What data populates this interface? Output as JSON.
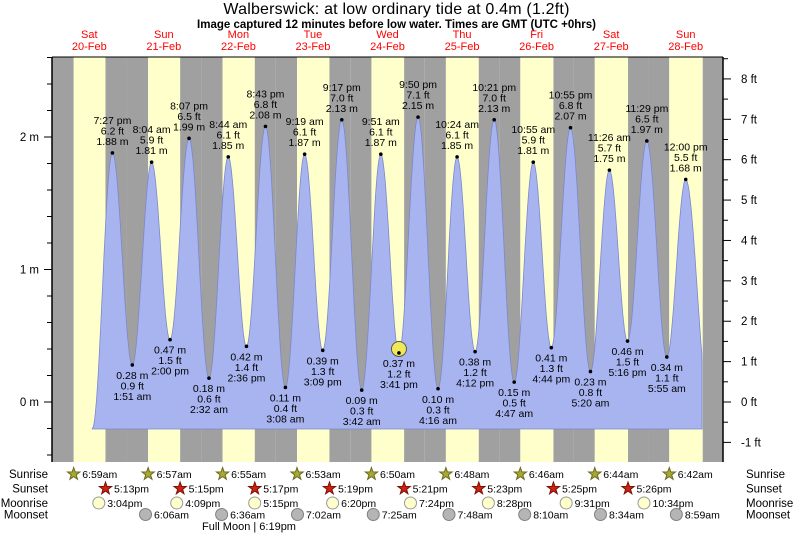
{
  "title": "Walberswick: at low  ordinary tide at 0.4m (1.2ft)",
  "subtitle": "Image captured 12 minutes before low water. Times are GMT (UTC +0hrs)",
  "colors": {
    "day_band": "#ffffcc",
    "night_band": "#a0a0a0",
    "sea_fill": "#a8b4f0",
    "sea_edge": "#7b88cc",
    "day_label": "#ff0000",
    "axis": "#000000",
    "sunrise_star": "#a8a832",
    "sunrise_star_edge": "#6b6b1e",
    "sunset_star": "#cc2211",
    "sunset_star_edge": "#7a1206",
    "moonrise_circle": "#ffffcc",
    "moonrise_circle_edge": "#999999",
    "moonset_circle": "#b5b5b5",
    "moonset_circle_edge": "#808080",
    "current_marker": "#f0e858"
  },
  "chart_data": {
    "type": "area",
    "title": "Walberswick: at low  ordinary tide at 0.4m (1.2ft)",
    "subtitle": "Image captured 12 minutes before low water. Times are GMT (UTC +0hrs)",
    "x_axis": {
      "days": [
        {
          "name": "Sat",
          "date": "20-Feb"
        },
        {
          "name": "Sun",
          "date": "21-Feb"
        },
        {
          "name": "Mon",
          "date": "22-Feb"
        },
        {
          "name": "Tue",
          "date": "23-Feb"
        },
        {
          "name": "Wed",
          "date": "24-Feb"
        },
        {
          "name": "Thu",
          "date": "25-Feb"
        },
        {
          "name": "Fri",
          "date": "26-Feb"
        },
        {
          "name": "Sat",
          "date": "27-Feb"
        },
        {
          "name": "Sun",
          "date": "28-Feb"
        }
      ]
    },
    "y_axis_left": {
      "unit": "m",
      "tick_labels": [
        "0 m",
        "1 m",
        "2 m"
      ],
      "tick_values": [
        0,
        1,
        2
      ]
    },
    "y_axis_right": {
      "unit": "ft",
      "tick_labels": [
        "-1 ft",
        "0 ft",
        "1 ft",
        "2 ft",
        "3 ft",
        "4 ft",
        "5 ft",
        "6 ft",
        "7 ft",
        "8 ft"
      ],
      "tick_values": [
        -1,
        0,
        1,
        2,
        3,
        4,
        5,
        6,
        7,
        8
      ]
    },
    "events": [
      {
        "day": 0,
        "time": "7:27 pm",
        "type": "high",
        "m": 1.88,
        "ft": 6.2,
        "m_label": "1.88 m",
        "ft_label": "6.2 ft"
      },
      {
        "day": 1,
        "time": "1:51 am",
        "type": "low",
        "m": 0.28,
        "ft": 0.9,
        "m_label": "0.28 m",
        "ft_label": "0.9 ft"
      },
      {
        "day": 1,
        "time": "8:04 am",
        "type": "high",
        "m": 1.81,
        "ft": 5.9,
        "m_label": "1.81 m",
        "ft_label": "5.9 ft"
      },
      {
        "day": 1,
        "time": "2:00 pm",
        "type": "low",
        "m": 0.47,
        "ft": 1.5,
        "m_label": "0.47 m",
        "ft_label": "1.5 ft"
      },
      {
        "day": 1,
        "time": "8:07 pm",
        "type": "high",
        "m": 1.99,
        "ft": 6.5,
        "m_label": "1.99 m",
        "ft_label": "6.5 ft"
      },
      {
        "day": 2,
        "time": "2:32 am",
        "type": "low",
        "m": 0.18,
        "ft": 0.6,
        "m_label": "0.18 m",
        "ft_label": "0.6 ft"
      },
      {
        "day": 2,
        "time": "8:44 am",
        "type": "high",
        "m": 1.85,
        "ft": 6.1,
        "m_label": "1.85 m",
        "ft_label": "6.1 ft"
      },
      {
        "day": 2,
        "time": "2:36 pm",
        "type": "low",
        "m": 0.42,
        "ft": 1.4,
        "m_label": "0.42 m",
        "ft_label": "1.4 ft"
      },
      {
        "day": 2,
        "time": "8:43 pm",
        "type": "high",
        "m": 2.08,
        "ft": 6.8,
        "m_label": "2.08 m",
        "ft_label": "6.8 ft"
      },
      {
        "day": 3,
        "time": "3:08 am",
        "type": "low",
        "m": 0.11,
        "ft": 0.4,
        "m_label": "0.11 m",
        "ft_label": "0.4 ft"
      },
      {
        "day": 3,
        "time": "9:19 am",
        "type": "high",
        "m": 1.87,
        "ft": 6.1,
        "m_label": "1.87 m",
        "ft_label": "6.1 ft"
      },
      {
        "day": 3,
        "time": "3:09 pm",
        "type": "low",
        "m": 0.39,
        "ft": 1.3,
        "m_label": "0.39 m",
        "ft_label": "1.3 ft"
      },
      {
        "day": 3,
        "time": "9:17 pm",
        "type": "high",
        "m": 2.13,
        "ft": 7.0,
        "m_label": "2.13 m",
        "ft_label": "7.0 ft"
      },
      {
        "day": 4,
        "time": "3:42 am",
        "type": "low",
        "m": 0.09,
        "ft": 0.3,
        "m_label": "0.09 m",
        "ft_label": "0.3 ft"
      },
      {
        "day": 4,
        "time": "9:51 am",
        "type": "high",
        "m": 1.87,
        "ft": 6.1,
        "m_label": "1.87 m",
        "ft_label": "6.1 ft"
      },
      {
        "day": 4,
        "time": "3:41 pm",
        "type": "low",
        "m": 0.37,
        "ft": 1.2,
        "m_label": "0.37 m",
        "ft_label": "1.2 ft",
        "current": true
      },
      {
        "day": 4,
        "time": "9:50 pm",
        "type": "high",
        "m": 2.15,
        "ft": 7.1,
        "m_label": "2.15 m",
        "ft_label": "7.1 ft"
      },
      {
        "day": 5,
        "time": "4:16 am",
        "type": "low",
        "m": 0.1,
        "ft": 0.3,
        "m_label": "0.10 m",
        "ft_label": "0.3 ft"
      },
      {
        "day": 5,
        "time": "10:24 am",
        "type": "high",
        "m": 1.85,
        "ft": 6.1,
        "m_label": "1.85 m",
        "ft_label": "6.1 ft"
      },
      {
        "day": 5,
        "time": "4:12 pm",
        "type": "low",
        "m": 0.38,
        "ft": 1.2,
        "m_label": "0.38 m",
        "ft_label": "1.2 ft"
      },
      {
        "day": 5,
        "time": "10:21 pm",
        "type": "high",
        "m": 2.13,
        "ft": 7.0,
        "m_label": "2.13 m",
        "ft_label": "7.0 ft"
      },
      {
        "day": 6,
        "time": "4:47 am",
        "type": "low",
        "m": 0.15,
        "ft": 0.5,
        "m_label": "0.15 m",
        "ft_label": "0.5 ft"
      },
      {
        "day": 6,
        "time": "10:55 am",
        "type": "high",
        "m": 1.81,
        "ft": 5.9,
        "m_label": "1.81 m",
        "ft_label": "5.9 ft"
      },
      {
        "day": 6,
        "time": "4:44 pm",
        "type": "low",
        "m": 0.41,
        "ft": 1.3,
        "m_label": "0.41 m",
        "ft_label": "1.3 ft"
      },
      {
        "day": 6,
        "time": "10:55 pm",
        "type": "high",
        "m": 2.07,
        "ft": 6.8,
        "m_label": "2.07 m",
        "ft_label": "6.8 ft"
      },
      {
        "day": 7,
        "time": "5:20 am",
        "type": "low",
        "m": 0.23,
        "ft": 0.8,
        "m_label": "0.23 m",
        "ft_label": "0.8 ft"
      },
      {
        "day": 7,
        "time": "11:26 am",
        "type": "high",
        "m": 1.75,
        "ft": 5.7,
        "m_label": "1.75 m",
        "ft_label": "5.7 ft"
      },
      {
        "day": 7,
        "time": "5:16 pm",
        "type": "low",
        "m": 0.46,
        "ft": 1.5,
        "m_label": "0.46 m",
        "ft_label": "1.5 ft"
      },
      {
        "day": 7,
        "time": "11:29 pm",
        "type": "high",
        "m": 1.97,
        "ft": 6.5,
        "m_label": "1.97 m",
        "ft_label": "6.5 ft"
      },
      {
        "day": 8,
        "time": "5:55 am",
        "type": "low",
        "m": 0.34,
        "ft": 1.1,
        "m_label": "0.34 m",
        "ft_label": "1.1 ft"
      },
      {
        "day": 8,
        "time": "12:00 pm",
        "type": "high",
        "m": 1.68,
        "ft": 5.5,
        "m_label": "1.68 m",
        "ft_label": "5.5 ft"
      }
    ],
    "current_marker": {
      "time": "3:41 pm",
      "m": 0.37
    }
  },
  "astro": {
    "sunrise": {
      "label": "Sunrise",
      "entries": [
        {
          "day": 0,
          "time": "6:59am"
        },
        {
          "day": 1,
          "time": "6:57am"
        },
        {
          "day": 2,
          "time": "6:55am"
        },
        {
          "day": 3,
          "time": "6:53am"
        },
        {
          "day": 4,
          "time": "6:50am"
        },
        {
          "day": 5,
          "time": "6:48am"
        },
        {
          "day": 6,
          "time": "6:46am"
        },
        {
          "day": 7,
          "time": "6:44am"
        },
        {
          "day": 8,
          "time": "6:42am"
        }
      ]
    },
    "sunset": {
      "label": "Sunset",
      "entries": [
        {
          "day": 0,
          "time": "5:13pm"
        },
        {
          "day": 1,
          "time": "5:15pm"
        },
        {
          "day": 2,
          "time": "5:17pm"
        },
        {
          "day": 3,
          "time": "5:19pm"
        },
        {
          "day": 4,
          "time": "5:21pm"
        },
        {
          "day": 5,
          "time": "5:23pm"
        },
        {
          "day": 6,
          "time": "5:25pm"
        },
        {
          "day": 7,
          "time": "5:26pm"
        }
      ]
    },
    "moonrise": {
      "label": "Moonrise",
      "entries": [
        {
          "day": 0,
          "time": "3:04pm"
        },
        {
          "day": 1,
          "time": "4:09pm"
        },
        {
          "day": 2,
          "time": "5:15pm"
        },
        {
          "day": 3,
          "time": "6:20pm"
        },
        {
          "day": 4,
          "time": "7:24pm"
        },
        {
          "day": 5,
          "time": "8:28pm"
        },
        {
          "day": 6,
          "time": "9:31pm"
        },
        {
          "day": 7,
          "time": "10:34pm"
        }
      ]
    },
    "moonset": {
      "label": "Moonset",
      "entries": [
        {
          "day": 1,
          "time": "6:06am"
        },
        {
          "day": 2,
          "time": "6:36am"
        },
        {
          "day": 3,
          "time": "7:02am"
        },
        {
          "day": 4,
          "time": "7:25am"
        },
        {
          "day": 5,
          "time": "7:48am"
        },
        {
          "day": 6,
          "time": "8:10am"
        },
        {
          "day": 7,
          "time": "8:34am"
        },
        {
          "day": 8,
          "time": "8:59am"
        }
      ]
    },
    "full_moon": "Full Moon | 6:19pm"
  }
}
